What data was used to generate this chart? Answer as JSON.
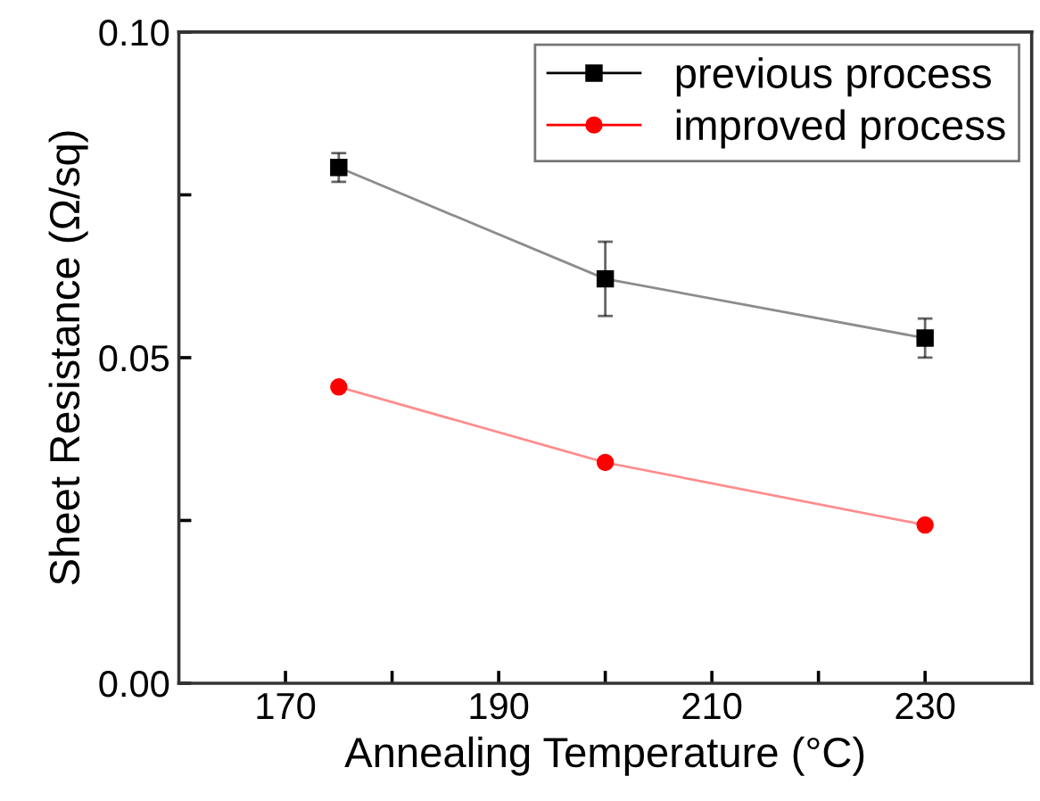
{
  "chart_data": {
    "type": "line",
    "xlabel": "Annealing Temperature (°C)",
    "ylabel": "Sheet Resistance (Ω/sq)",
    "x": [
      175,
      200,
      230
    ],
    "series": [
      {
        "name": "previous process",
        "color": "#000000",
        "marker": "square",
        "values": [
          0.0792,
          0.0621,
          0.053
        ],
        "errors": [
          0.0022,
          0.0057,
          0.003
        ]
      },
      {
        "name": "improved process",
        "color": "#ff0000",
        "marker": "circle",
        "values": [
          0.0455,
          0.0339,
          0.0243
        ]
      }
    ],
    "xlim": [
      160,
      240
    ],
    "xticks": [
      170,
      {
        "value": 180,
        "label": null
      },
      190,
      {
        "value": 200,
        "label": null
      },
      210,
      {
        "value": 220,
        "label": null
      },
      230
    ],
    "ylim": [
      0,
      0.1
    ],
    "yticks": [
      {
        "value": 0,
        "label": "0.00"
      },
      {
        "value": 0.025,
        "label": null
      },
      0.05,
      {
        "value": 0.075,
        "label": null
      },
      {
        "value": 0.1,
        "label": "0.10"
      }
    ],
    "grid": false,
    "legend": "top right",
    "line_style": "solid"
  }
}
